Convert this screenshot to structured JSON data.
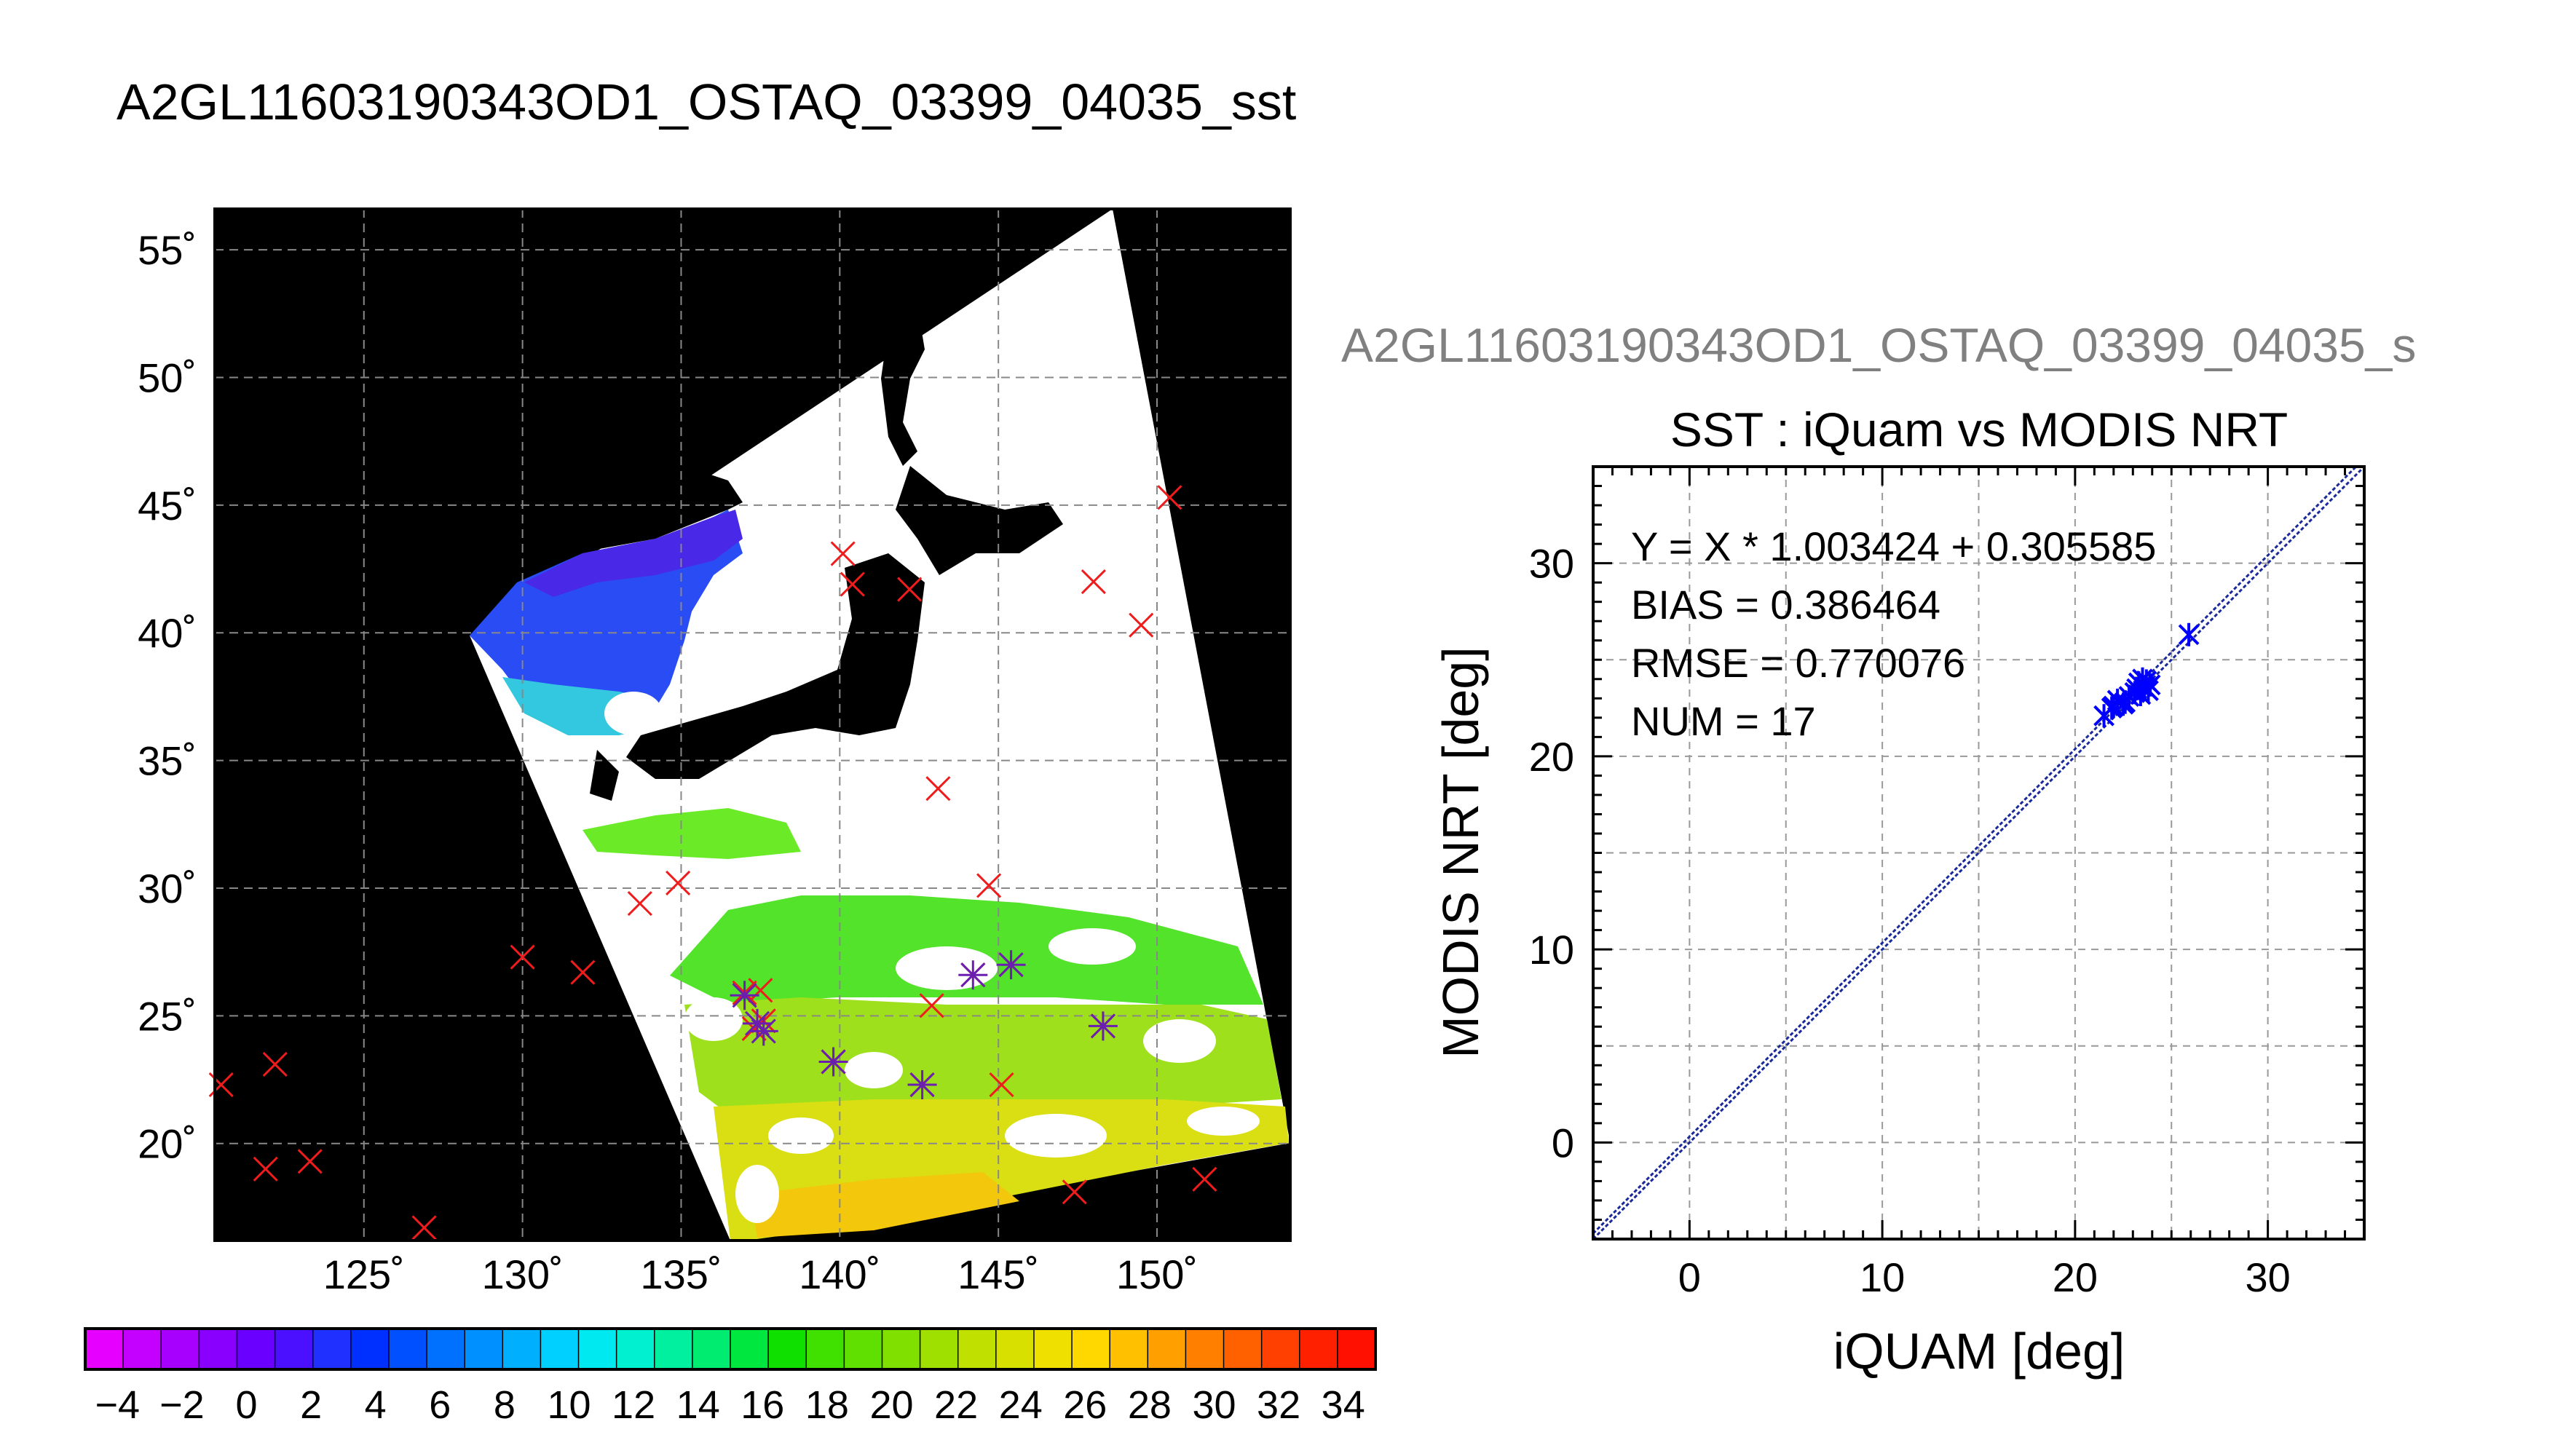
{
  "page": {
    "title": "A2GL11603190343OD1_OSTAQ_03399_04035_sst"
  },
  "map": {
    "lat_labels": [
      "55˚",
      "50˚",
      "45˚",
      "40˚",
      "35˚",
      "30˚",
      "25˚",
      "20˚"
    ],
    "lat_values": [
      55,
      50,
      45,
      40,
      35,
      30,
      25,
      20
    ],
    "lon_labels": [
      "125˚",
      "130˚",
      "135˚",
      "140˚",
      "145˚",
      "150˚"
    ],
    "lon_values": [
      125,
      130,
      135,
      140,
      145,
      150
    ],
    "lon_range": [
      120.3,
      154.2
    ],
    "lat_range": [
      16.2,
      56.6
    ]
  },
  "colorbar": {
    "tick_labels": [
      "−4",
      "−2",
      "0",
      "2",
      "4",
      "6",
      "8",
      "10",
      "12",
      "14",
      "16",
      "18",
      "20",
      "22",
      "24",
      "26",
      "28",
      "30",
      "32",
      "34"
    ],
    "range": [
      -5,
      35
    ],
    "colors": [
      "#e600ff",
      "#c400ff",
      "#a800ff",
      "#8a00ff",
      "#6a00ff",
      "#4a10ff",
      "#2030ff",
      "#0030ff",
      "#0050ff",
      "#0070ff",
      "#0090ff",
      "#00b0ff",
      "#00d0ff",
      "#00e8f0",
      "#00f0d0",
      "#00f0a0",
      "#00ec70",
      "#00e840",
      "#10e000",
      "#40e000",
      "#60e000",
      "#80e000",
      "#a0e000",
      "#c0e000",
      "#d8e000",
      "#f0e000",
      "#ffd800",
      "#ffc000",
      "#ffa000",
      "#ff8000",
      "#ff6000",
      "#ff4000",
      "#ff2000",
      "#ff1000"
    ]
  },
  "scatter": {
    "header": "A2GL11603190343OD1_OSTAQ_03399_04035_s",
    "stats": {
      "equation": "Y = X * 1.003424 + 0.305585",
      "bias": "BIAS = 0.386464",
      "rmse": "RMSE = 0.770076",
      "num": "NUM = 17"
    }
  },
  "chart_data": [
    {
      "type": "scatter",
      "title": "SST : iQuam vs MODIS NRT",
      "xlabel": "iQUAM [deg]",
      "ylabel": "MODIS NRT [deg]",
      "xlim": [
        -5,
        35
      ],
      "ylim": [
        -5,
        35
      ],
      "x_ticks": [
        0,
        10,
        20,
        30
      ],
      "y_ticks": [
        0,
        10,
        20,
        30
      ],
      "grid": true,
      "fit": {
        "slope": 1.003424,
        "intercept": 0.305585
      },
      "series": [
        {
          "color": "#0000ff",
          "marker": "asterisk",
          "x": [
            21.5,
            21.9,
            22.2,
            22.5,
            22.8,
            23.1,
            23.3,
            23.5,
            23.6,
            23.8,
            23.4,
            23.7,
            22.6,
            22.0,
            23.9,
            25.9,
            23.2
          ],
          "y": [
            22.1,
            22.5,
            22.9,
            22.7,
            23.1,
            23.3,
            23.8,
            24.0,
            23.6,
            23.4,
            23.2,
            23.9,
            22.8,
            22.6,
            23.7,
            26.3,
            23.5
          ]
        }
      ]
    }
  ],
  "matchups": {
    "red_x": [
      [
        120.5,
        22.3
      ],
      [
        122.2,
        23.1
      ],
      [
        121.9,
        19.0
      ],
      [
        123.3,
        19.3
      ],
      [
        126.9,
        16.7
      ],
      [
        130.0,
        27.3
      ],
      [
        131.9,
        26.7
      ],
      [
        133.7,
        29.4
      ],
      [
        134.9,
        30.2
      ],
      [
        137.0,
        25.9
      ],
      [
        137.5,
        26.0
      ],
      [
        137.3,
        24.5
      ],
      [
        137.6,
        24.8
      ],
      [
        139.8,
        23.2
      ],
      [
        140.1,
        43.1
      ],
      [
        140.4,
        41.9
      ],
      [
        142.2,
        41.7
      ],
      [
        143.1,
        33.9
      ],
      [
        142.6,
        22.3
      ],
      [
        142.9,
        25.4
      ],
      [
        144.2,
        26.6
      ],
      [
        144.7,
        30.1
      ],
      [
        145.4,
        27.0
      ],
      [
        145.1,
        22.3
      ],
      [
        148.0,
        42.0
      ],
      [
        149.5,
        40.3
      ],
      [
        150.4,
        45.3
      ],
      [
        147.4,
        18.1
      ],
      [
        148.3,
        24.6
      ],
      [
        151.5,
        18.6
      ]
    ],
    "purple_star": [
      [
        137.0,
        25.8
      ],
      [
        137.4,
        24.7
      ],
      [
        137.6,
        24.4
      ],
      [
        139.8,
        23.2
      ],
      [
        142.6,
        22.3
      ],
      [
        144.2,
        26.6
      ],
      [
        145.4,
        27.0
      ],
      [
        148.3,
        24.6
      ]
    ]
  }
}
